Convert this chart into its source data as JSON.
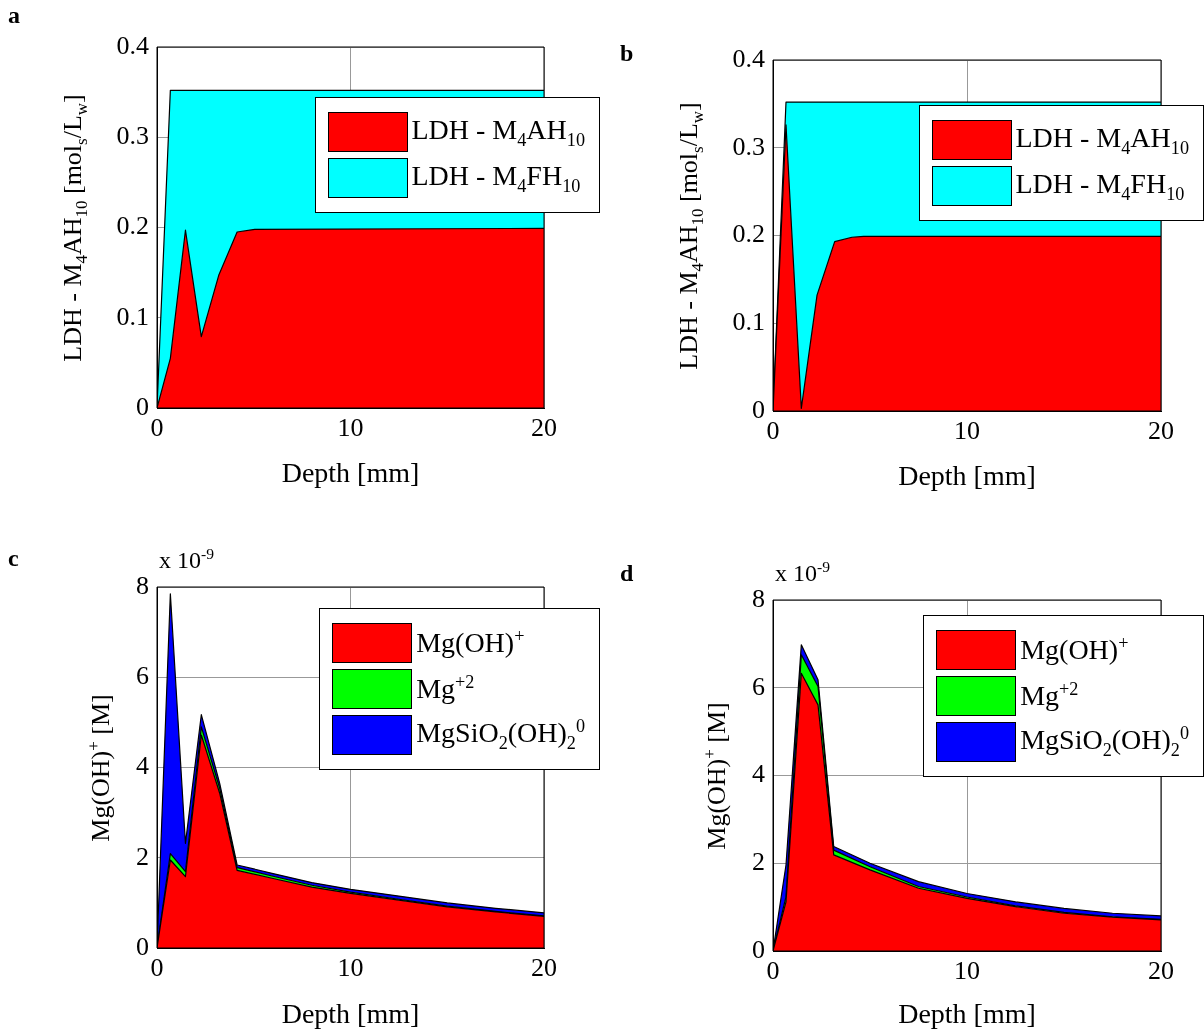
{
  "chart_data": [
    {
      "type": "area",
      "title": "a",
      "xlabel": "Depth [mm]",
      "ylabel": "LDH - M$_{4}$AH$_{10}$ [mol$_{s}$/L$_{w}$]",
      "stacked": true,
      "grid": true,
      "legend": "top right",
      "xlim": [
        0,
        20
      ],
      "xticks": [
        0,
        10,
        20
      ],
      "ylim": [
        0,
        0.4
      ],
      "yticks": [
        0,
        0.1,
        0.2,
        0.3,
        0.4
      ],
      "x": [
        0,
        0.69,
        1.47,
        2.29,
        3.19,
        4.14,
        5.05,
        20
      ],
      "series": [
        {
          "name": "LDH - M$_{4}$AH$_{10}$",
          "color": "#ff0000",
          "values": [
            0,
            0.055,
            0.197,
            0.079,
            0.147,
            0.195,
            0.198,
            0.199
          ]
        },
        {
          "name": "LDH - M$_{4}$FH$_{10}$",
          "color": "#00ffff",
          "values": [
            0,
            0.297,
            0.155,
            0.273,
            0.205,
            0.157,
            0.154,
            0.153
          ]
        }
      ]
    },
    {
      "type": "area",
      "title": "b",
      "xlabel": "Depth [mm]",
      "ylabel": "LDH - M$_{4}$AH$_{10}$ [mol$_{s}$/L$_{w}$]",
      "stacked": true,
      "grid": true,
      "legend": "top right",
      "xlim": [
        0,
        20
      ],
      "xticks": [
        0,
        10,
        20
      ],
      "ylim": [
        0,
        0.4
      ],
      "yticks": [
        0,
        0.1,
        0.2,
        0.3,
        0.4
      ],
      "x": [
        0,
        0.67,
        1.46,
        2.27,
        3.18,
        4.07,
        4.67,
        20
      ],
      "series": [
        {
          "name": "LDH - M$_{4}$AH$_{10}$",
          "color": "#ff0000",
          "values": [
            0,
            0.326,
            0.003,
            0.132,
            0.193,
            0.198,
            0.199,
            0.199
          ]
        },
        {
          "name": "LDH - M$_{4}$FH$_{10}$",
          "color": "#00ffff",
          "values": [
            0,
            0.026,
            0.349,
            0.22,
            0.159,
            0.154,
            0.153,
            0.153
          ]
        }
      ]
    },
    {
      "type": "area",
      "title": "c",
      "xlabel": "Depth [mm]",
      "ylabel": "Mg(OH)$^{+}$ [M]",
      "annotations": [
        "x 10$^{-9}$"
      ],
      "stacked": true,
      "grid": true,
      "legend": "top right",
      "xlim": [
        0,
        20
      ],
      "xticks": [
        0,
        10,
        20
      ],
      "ylim": [
        0,
        8
      ],
      "yticks": [
        0,
        2,
        4,
        6,
        8
      ],
      "x": [
        0,
        0.69,
        1.47,
        2.29,
        3.24,
        4.14,
        6,
        8,
        10,
        12.5,
        15,
        17.5,
        20
      ],
      "series": [
        {
          "name": "Mg(OH)$^{+}$",
          "color": "#ff0000",
          "values": [
            0,
            1.95,
            1.58,
            4.72,
            3.43,
            1.72,
            1.54,
            1.35,
            1.21,
            1.06,
            0.91,
            0.8,
            0.7
          ]
        },
        {
          "name": "Mg$^{+2}$",
          "color": "#00ff00",
          "values": [
            0,
            0.14,
            0.11,
            0.18,
            0.11,
            0.06,
            0.05,
            0.04,
            0.03,
            0.02,
            0.02,
            0.01,
            0.01
          ]
        },
        {
          "name": "MgSiO$_{2}$(OH)$_{2}$$^{0}$",
          "color": "#0000ff",
          "values": [
            0,
            5.76,
            0.63,
            0.27,
            0.11,
            0.06,
            0.06,
            0.06,
            0.06,
            0.07,
            0.07,
            0.07,
            0.07
          ]
        }
      ]
    },
    {
      "type": "area",
      "title": "d",
      "xlabel": "Depth [mm]",
      "ylabel": "Mg(OH)$^{+}$ [M]",
      "annotations": [
        "x 10$^{-9}$"
      ],
      "stacked": true,
      "grid": true,
      "legend": "top right",
      "xlim": [
        0,
        20
      ],
      "xticks": [
        0,
        10,
        20
      ],
      "ylim": [
        0,
        8
      ],
      "yticks": [
        0,
        2,
        4,
        6,
        8
      ],
      "x": [
        0,
        0.67,
        1.46,
        2.32,
        3.13,
        5,
        7.5,
        10,
        12.5,
        15,
        17.5,
        20
      ],
      "series": [
        {
          "name": "Mg(OH)$^{+}$",
          "color": "#ff0000",
          "values": [
            0,
            1.12,
            6.33,
            5.61,
            2.19,
            1.85,
            1.43,
            1.2,
            1.01,
            0.86,
            0.77,
            0.71
          ]
        },
        {
          "name": "Mg$^{+2}$",
          "color": "#00ff00",
          "values": [
            0,
            0.12,
            0.42,
            0.42,
            0.11,
            0.07,
            0.04,
            0.03,
            0.02,
            0.02,
            0.01,
            0.01
          ]
        },
        {
          "name": "MgSiO$_{2}$(OH)$_{2}$$^{0}$",
          "color": "#0000ff",
          "values": [
            0,
            0.72,
            0.23,
            0.15,
            0.08,
            0.08,
            0.11,
            0.08,
            0.09,
            0.09,
            0.08,
            0.08
          ]
        }
      ]
    }
  ]
}
